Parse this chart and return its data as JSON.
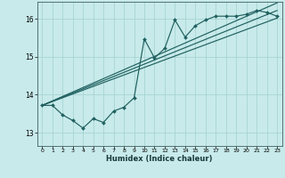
{
  "xlabel": "Humidex (Indice chaleur)",
  "bg_color": "#c8eaea",
  "line_color": "#206060",
  "grid_color": "#a8d4d4",
  "xlim": [
    -0.5,
    23.5
  ],
  "ylim": [
    12.65,
    16.45
  ],
  "xticks": [
    0,
    1,
    2,
    3,
    4,
    5,
    6,
    7,
    8,
    9,
    10,
    11,
    12,
    13,
    14,
    15,
    16,
    17,
    18,
    19,
    20,
    21,
    22,
    23
  ],
  "yticks": [
    13,
    14,
    15,
    16
  ],
  "scatter_x": [
    0,
    1,
    2,
    3,
    4,
    5,
    6,
    7,
    8,
    9,
    10,
    11,
    12,
    13,
    14,
    15,
    16,
    17,
    18,
    19,
    20,
    21,
    22,
    23
  ],
  "scatter_y": [
    13.72,
    13.72,
    13.47,
    13.32,
    13.12,
    13.37,
    13.27,
    13.57,
    13.67,
    13.92,
    15.47,
    14.97,
    15.22,
    15.97,
    15.52,
    15.82,
    15.97,
    16.07,
    16.07,
    16.07,
    16.12,
    16.22,
    16.17,
    16.07
  ],
  "line1_x": [
    0,
    23
  ],
  "line1_y": [
    13.72,
    16.22
  ],
  "line2_x": [
    0,
    23
  ],
  "line2_y": [
    13.72,
    16.42
  ],
  "line3_x": [
    0,
    23
  ],
  "line3_y": [
    13.72,
    16.02
  ]
}
